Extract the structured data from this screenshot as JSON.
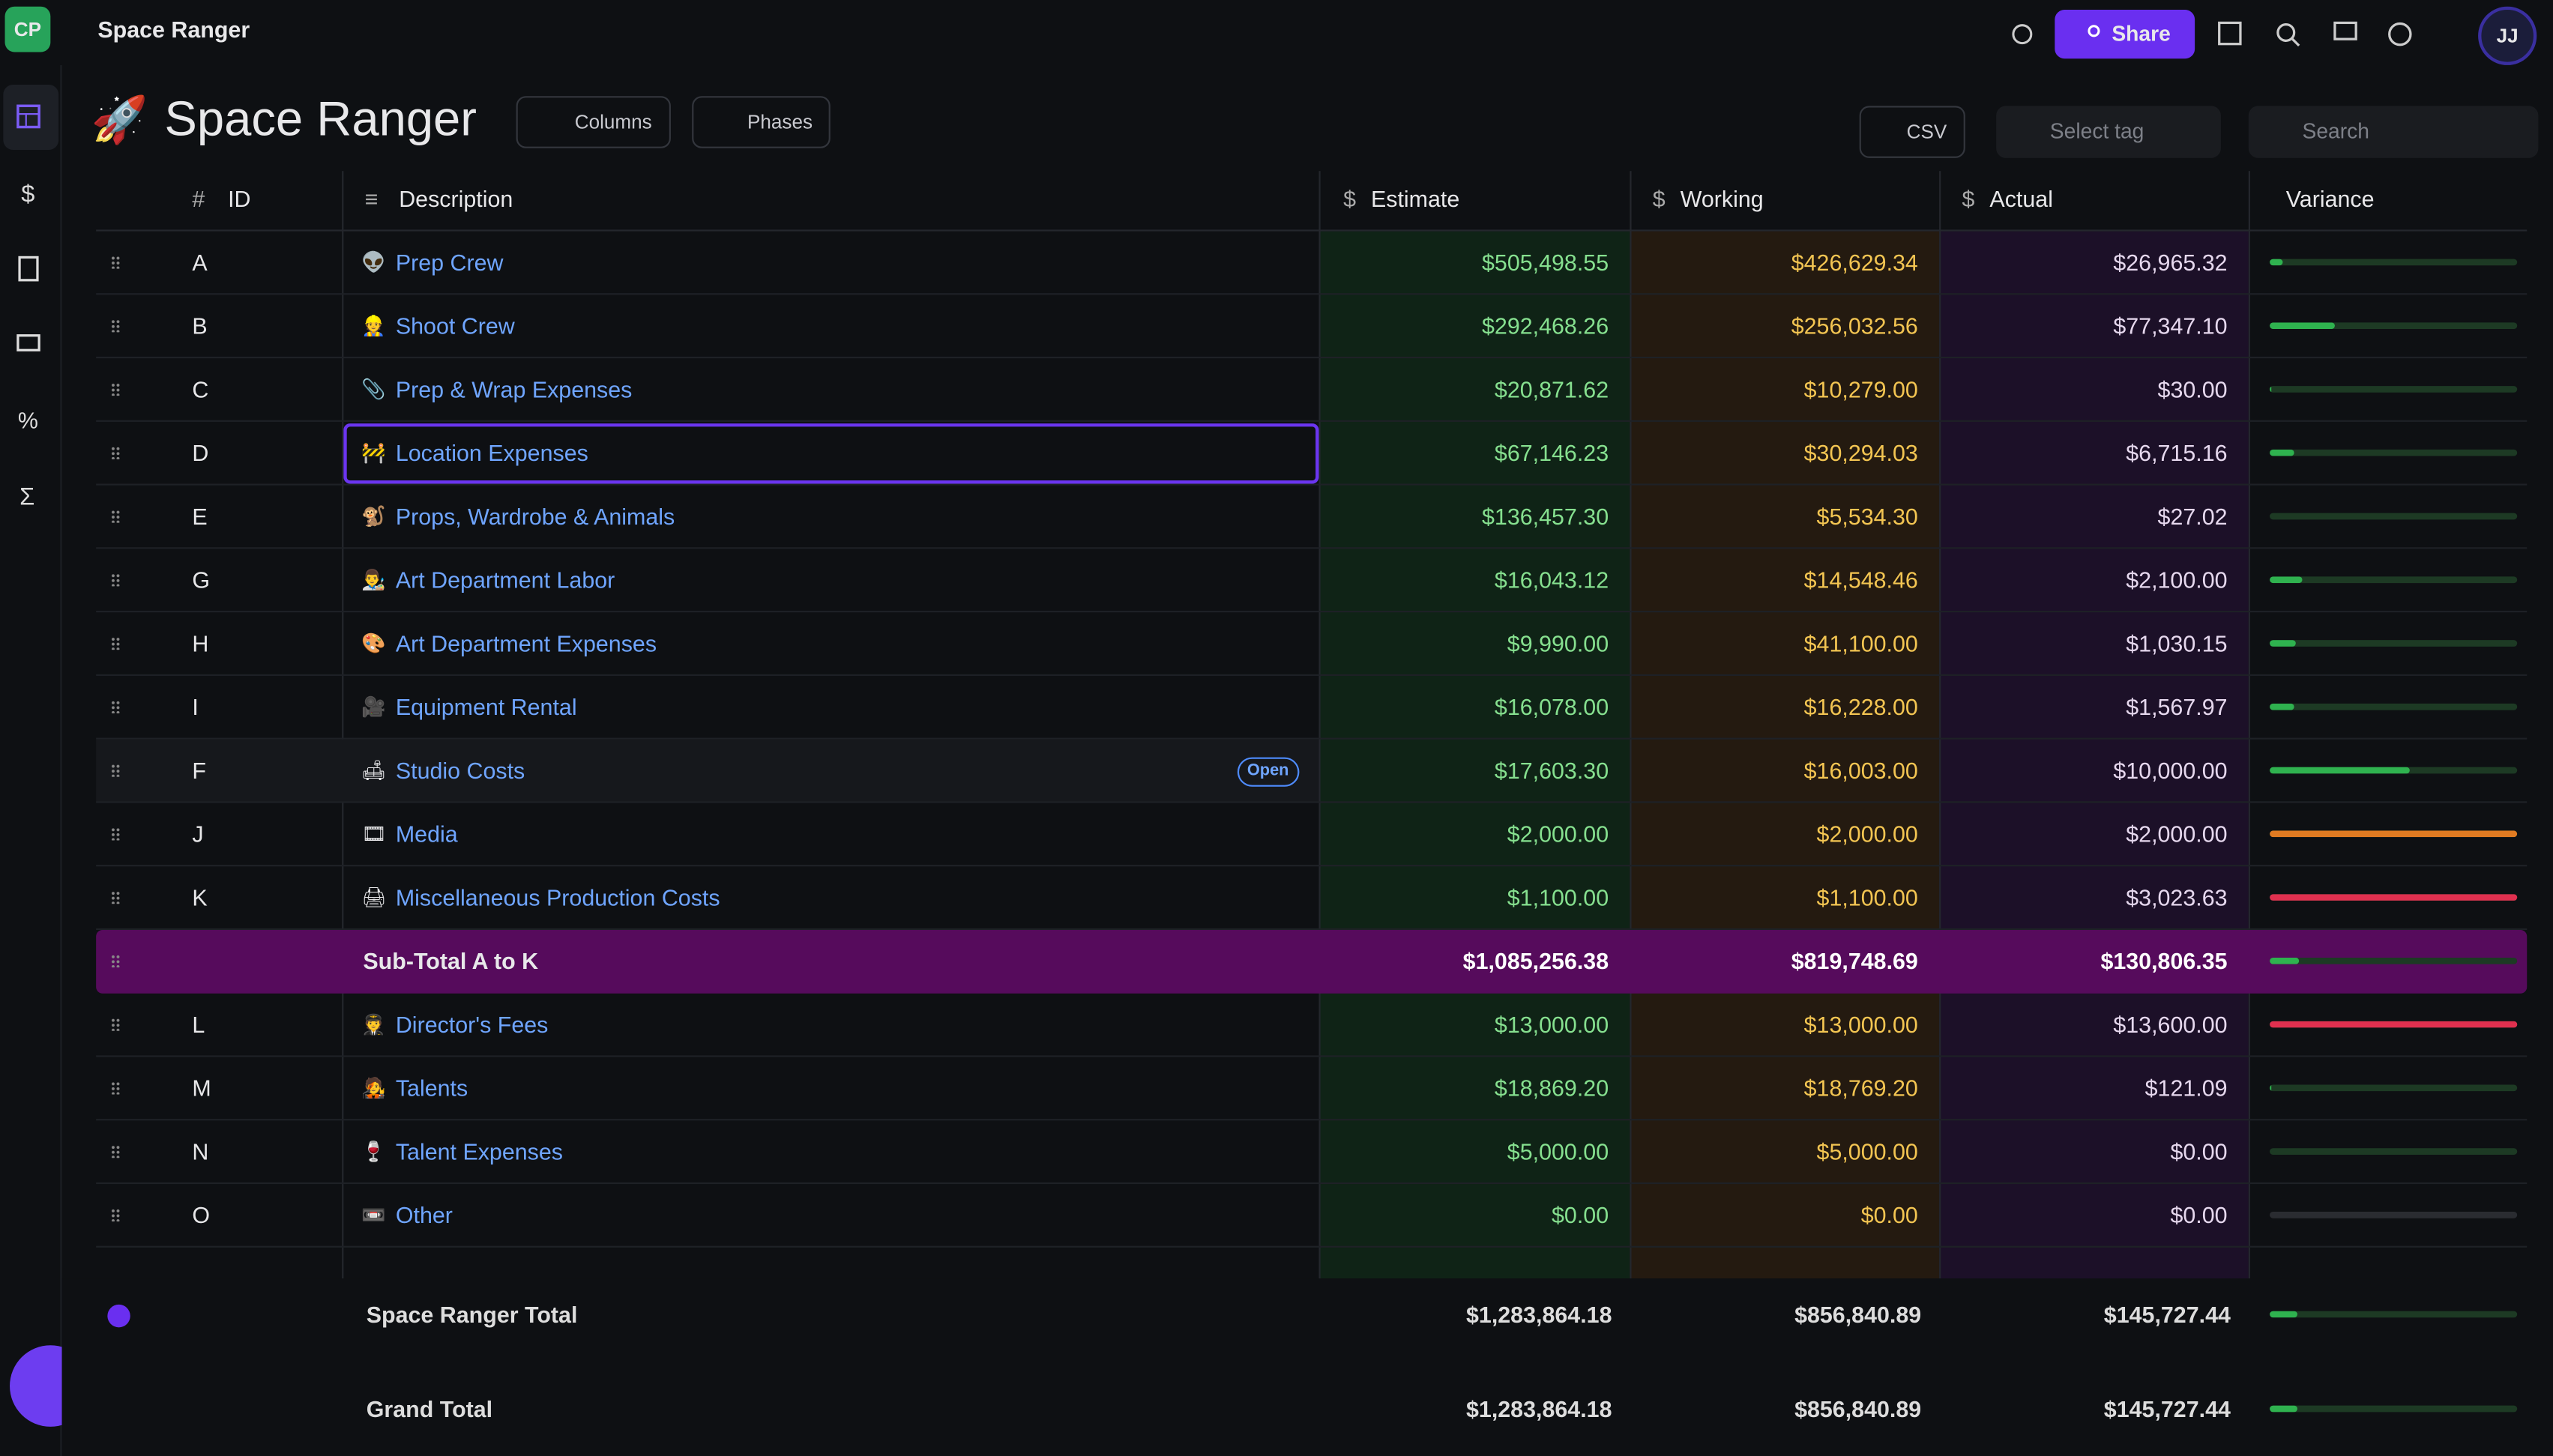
{
  "header": {
    "avatar": "CP",
    "app_title": "Space Ranger",
    "share": "Share",
    "user": "JJ"
  },
  "page": {
    "icon": "🚀",
    "title": "Space Ranger",
    "columns_button": "Columns",
    "phases_button": "Phases",
    "csv_button": "CSV",
    "select_tag": "Select tag",
    "search": "Search"
  },
  "table": {
    "columns": [
      {
        "icon": "#",
        "label": "ID"
      },
      {
        "icon": "≡",
        "label": "Description"
      },
      {
        "icon": "$",
        "label": "Estimate"
      },
      {
        "icon": "$",
        "label": "Working"
      },
      {
        "icon": "$",
        "label": "Actual"
      },
      {
        "label": "Variance"
      }
    ],
    "rows": [
      {
        "id": "A",
        "icon": "👽",
        "description": "Prep Crew",
        "estimate": "$505,498.55",
        "working": "$426,629.34",
        "actual": "$26,965.32"
      },
      {
        "id": "B",
        "icon": "👷",
        "description": "Shoot Crew",
        "estimate": "$292,468.26",
        "working": "$256,032.56",
        "actual": "$77,347.10"
      },
      {
        "id": "C",
        "icon": "📎",
        "description": "Prep & Wrap Expenses",
        "estimate": "$20,871.62",
        "working": "$10,279.00",
        "actual": "$30.00"
      },
      {
        "id": "D",
        "icon": "🚧",
        "description": "Location Expenses",
        "estimate": "$67,146.23",
        "working": "$30,294.03",
        "actual": "$6,715.16"
      },
      {
        "id": "E",
        "icon": "🐒",
        "description": "Props, Wardrobe & Animals",
        "estimate": "$136,457.30",
        "working": "$5,534.30",
        "actual": "$27.02"
      },
      {
        "id": "G",
        "icon": "👨‍🎨",
        "description": "Art Department Labor",
        "estimate": "$16,043.12",
        "working": "$14,548.46",
        "actual": "$2,100.00"
      },
      {
        "id": "H",
        "icon": "🎨",
        "description": "Art Department Expenses",
        "estimate": "$9,990.00",
        "working": "$41,100.00",
        "actual": "$1,030.15"
      },
      {
        "id": "I",
        "icon": "🎥",
        "description": "Equipment Rental",
        "estimate": "$16,078.00",
        "working": "$16,228.00",
        "actual": "$1,567.97"
      },
      {
        "id": "F",
        "icon": "🛋",
        "description": "Studio Costs",
        "badge": "Open",
        "estimate": "$17,603.30",
        "working": "$16,003.00",
        "actual": "$10,000.00"
      },
      {
        "id": "J",
        "icon": "🎞",
        "description": "Media",
        "estimate": "$2,000.00",
        "working": "$2,000.00",
        "actual": "$2,000.00"
      },
      {
        "id": "K",
        "icon": "🖨",
        "description": "Miscellaneous Production Costs",
        "estimate": "$1,100.00",
        "working": "$1,100.00",
        "actual": "$3,023.63"
      },
      {
        "label": "Sub-Total A to K",
        "estimate": "$1,085,256.38",
        "working": "$819,748.69",
        "actual": "$130,806.35"
      },
      {
        "id": "L",
        "icon": "🧑‍✈️",
        "description": "Director's Fees",
        "estimate": "$13,000.00",
        "working": "$13,000.00",
        "actual": "$13,600.00"
      },
      {
        "id": "M",
        "icon": "🧑‍🎤",
        "description": "Talents",
        "estimate": "$18,869.20",
        "working": "$18,769.20",
        "actual": "$121.09"
      },
      {
        "id": "N",
        "icon": "🍷",
        "description": "Talent Expenses",
        "estimate": "$5,000.00",
        "working": "$5,000.00",
        "actual": "$0.00"
      },
      {
        "id": "O",
        "icon": "📼",
        "description": "Other",
        "estimate": "$0.00",
        "working": "$0.00",
        "actual": "$0.00"
      }
    ]
  },
  "footer": {
    "rows": [
      {
        "label": "Space Ranger Total",
        "estimate": "$1,283,864.18",
        "working": "$856,840.89",
        "actual": "$145,727.44"
      },
      {
        "label": "Grand Total",
        "estimate": "$1,283,864.18",
        "working": "$856,840.89",
        "actual": "$145,727.44"
      }
    ]
  }
}
